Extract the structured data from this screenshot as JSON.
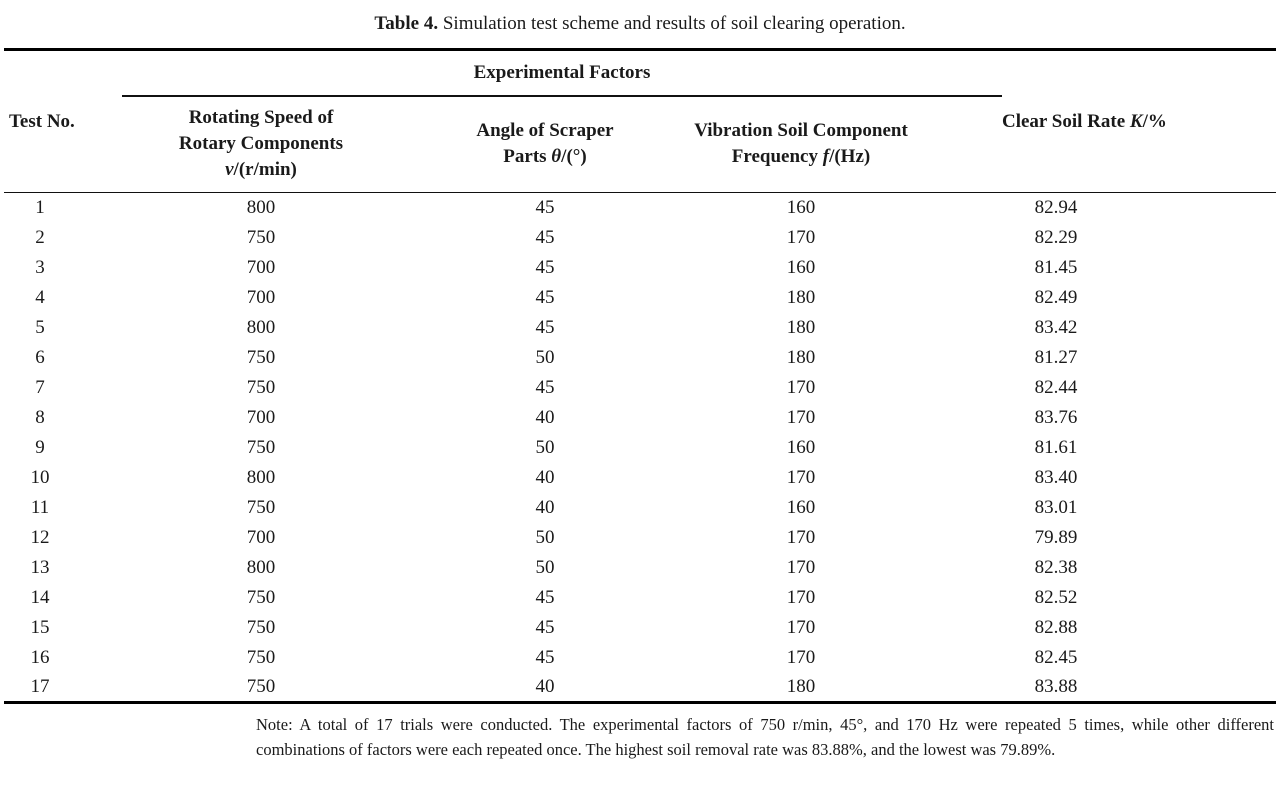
{
  "caption": {
    "label": "Table 4.",
    "text": "Simulation test scheme and results of soil clearing operation."
  },
  "table": {
    "group_header": "Experimental Factors",
    "columns": {
      "test_no": {
        "label": "Test No."
      },
      "speed": {
        "line1": "Rotating Speed of",
        "line2": "Rotary Components",
        "var": "v",
        "unit": "/(r/min)"
      },
      "angle": {
        "line1": "Angle of Scraper",
        "line2": "Parts",
        "var": "θ",
        "unit": "/(°)"
      },
      "frequency": {
        "line1": "Vibration Soil Component",
        "line2": "Frequency",
        "var": "f",
        "unit": "/(Hz)"
      },
      "clear_rate": {
        "label": "Clear Soil Rate",
        "var": "K",
        "unit": "/%"
      }
    },
    "rows": [
      {
        "no": "1",
        "speed": "800",
        "angle": "45",
        "frequency": "160",
        "rate": "82.94"
      },
      {
        "no": "2",
        "speed": "750",
        "angle": "45",
        "frequency": "170",
        "rate": "82.29"
      },
      {
        "no": "3",
        "speed": "700",
        "angle": "45",
        "frequency": "160",
        "rate": "81.45"
      },
      {
        "no": "4",
        "speed": "700",
        "angle": "45",
        "frequency": "180",
        "rate": "82.49"
      },
      {
        "no": "5",
        "speed": "800",
        "angle": "45",
        "frequency": "180",
        "rate": "83.42"
      },
      {
        "no": "6",
        "speed": "750",
        "angle": "50",
        "frequency": "180",
        "rate": "81.27"
      },
      {
        "no": "7",
        "speed": "750",
        "angle": "45",
        "frequency": "170",
        "rate": "82.44"
      },
      {
        "no": "8",
        "speed": "700",
        "angle": "40",
        "frequency": "170",
        "rate": "83.76"
      },
      {
        "no": "9",
        "speed": "750",
        "angle": "50",
        "frequency": "160",
        "rate": "81.61"
      },
      {
        "no": "10",
        "speed": "800",
        "angle": "40",
        "frequency": "170",
        "rate": "83.40"
      },
      {
        "no": "11",
        "speed": "750",
        "angle": "40",
        "frequency": "160",
        "rate": "83.01"
      },
      {
        "no": "12",
        "speed": "700",
        "angle": "50",
        "frequency": "170",
        "rate": "79.89"
      },
      {
        "no": "13",
        "speed": "800",
        "angle": "50",
        "frequency": "170",
        "rate": "82.38"
      },
      {
        "no": "14",
        "speed": "750",
        "angle": "45",
        "frequency": "170",
        "rate": "82.52"
      },
      {
        "no": "15",
        "speed": "750",
        "angle": "45",
        "frequency": "170",
        "rate": "82.88"
      },
      {
        "no": "16",
        "speed": "750",
        "angle": "45",
        "frequency": "170",
        "rate": "82.45"
      },
      {
        "no": "17",
        "speed": "750",
        "angle": "40",
        "frequency": "180",
        "rate": "83.88"
      }
    ]
  },
  "note": {
    "text": "Note: A total of 17 trials were conducted. The experimental factors of 750 r/min, 45°, and 170 Hz were repeated 5 times, while other different combinations of factors were each repeated once. The highest soil removal rate was 83.88%, and the lowest was 79.89%."
  },
  "colors": {
    "text": "#1a1a1a",
    "rule": "#000000",
    "background": "#ffffff"
  }
}
